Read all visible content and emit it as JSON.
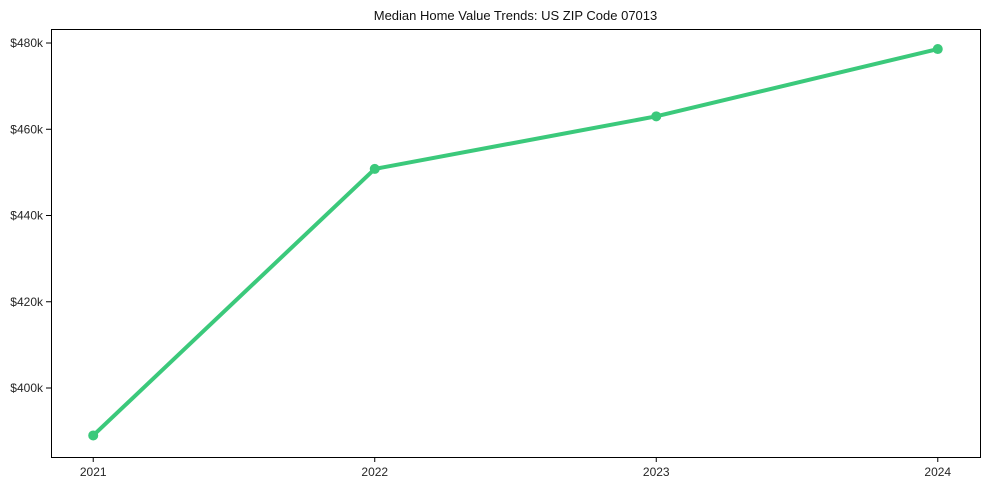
{
  "chart_data": {
    "type": "line",
    "title": "Median Home Value Trends: US ZIP Code 07013",
    "categories": [
      "2021",
      "2022",
      "2023",
      "2024"
    ],
    "x": [
      2021,
      2022,
      2023,
      2024
    ],
    "values": [
      389000,
      450800,
      463000,
      478600
    ],
    "xlabel": "",
    "ylabel": "",
    "xlim": [
      2020.85,
      2024.15
    ],
    "ylim": [
      384000,
      483250
    ],
    "xticks": {
      "values": [
        2021,
        2022,
        2023,
        2024
      ],
      "labels": [
        "2021",
        "2022",
        "2023",
        "2024"
      ]
    },
    "yticks": {
      "values": [
        400000,
        420000,
        440000,
        460000,
        480000
      ],
      "labels": [
        "$400k",
        "$420k",
        "$440k",
        "$460k",
        "$480k"
      ]
    },
    "grid": false,
    "legend": "none",
    "style": {
      "line_color": "#3bc97b",
      "marker_color": "#3bc97b",
      "marker": "circle",
      "marker_radius": 5,
      "line_width": 4,
      "axis_color": "#000000",
      "tick_color": "#000000",
      "tick_label_color": "#262626",
      "title_color": "#111111",
      "background": "#ffffff"
    }
  }
}
